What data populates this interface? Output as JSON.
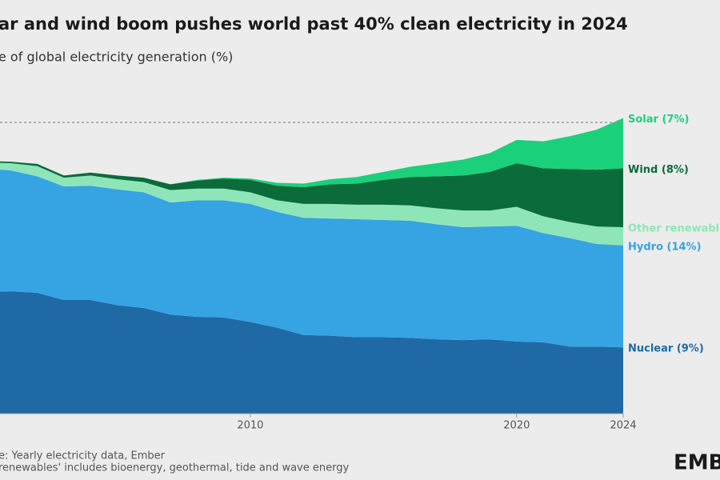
{
  "chart_data": {
    "type": "stacked_area",
    "title": "ar and wind boom pushes world past 40% clean electricity in 2024",
    "subtitle": "e of global electricity generation (%)",
    "x": [
      2000,
      2001,
      2002,
      2003,
      2004,
      2005,
      2006,
      2007,
      2008,
      2009,
      2010,
      2011,
      2012,
      2013,
      2014,
      2015,
      2016,
      2017,
      2018,
      2019,
      2020,
      2021,
      2022,
      2023,
      2024
    ],
    "xlim": [
      2000,
      2024
    ],
    "xticks": [
      2010,
      2020,
      2024
    ],
    "ylim": [
      0,
      55
    ],
    "reference_line": 40,
    "series": [
      {
        "name": "Nuclear (9%)",
        "color": "#1f6aa5",
        "values": [
          16.7,
          16.8,
          16.6,
          15.6,
          15.6,
          14.9,
          14.5,
          13.6,
          13.3,
          13.2,
          12.6,
          11.8,
          10.8,
          10.7,
          10.5,
          10.5,
          10.4,
          10.2,
          10.1,
          10.2,
          9.9,
          9.8,
          9.2,
          9.2,
          9.1
        ]
      },
      {
        "name": "Hydro (14%)",
        "color": "#36a3e3",
        "values": [
          17.0,
          16.6,
          16.0,
          15.6,
          15.7,
          15.9,
          15.9,
          15.4,
          16.0,
          16.1,
          16.2,
          15.9,
          16.1,
          16.1,
          16.2,
          16.1,
          16.1,
          15.8,
          15.5,
          15.5,
          15.9,
          15.0,
          14.9,
          14.1,
          14.0
        ]
      },
      {
        "name": "Other renewable",
        "color": "#8ee6b8",
        "values": [
          0.8,
          1.0,
          1.4,
          1.2,
          1.4,
          1.4,
          1.4,
          1.7,
          1.6,
          1.6,
          1.6,
          1.6,
          1.9,
          2.0,
          2.0,
          2.1,
          2.1,
          2.2,
          2.3,
          2.2,
          2.6,
          2.3,
          2.2,
          2.4,
          2.5
        ]
      },
      {
        "name": "Wind (8%)",
        "color": "#0b6b3a",
        "values": [
          0.2,
          0.2,
          0.3,
          0.3,
          0.4,
          0.5,
          0.6,
          0.8,
          1.1,
          1.4,
          1.7,
          2.0,
          2.3,
          2.7,
          2.9,
          3.4,
          3.9,
          4.4,
          4.8,
          5.3,
          6.0,
          6.6,
          7.3,
          7.8,
          8.1
        ]
      },
      {
        "name": "Solar (7%)",
        "color": "#1bd07a",
        "values": [
          0.0,
          0.0,
          0.0,
          0.0,
          0.0,
          0.0,
          0.0,
          0.0,
          0.1,
          0.1,
          0.2,
          0.4,
          0.5,
          0.7,
          0.9,
          1.1,
          1.4,
          1.8,
          2.2,
          2.6,
          3.2,
          3.7,
          4.5,
          5.5,
          6.9
        ]
      }
    ],
    "notes": [
      "e: Yearly electricity data, Ember",
      "renewables' includes bioenergy, geothermal, tide and wave energy"
    ],
    "logo": "EMBE"
  }
}
